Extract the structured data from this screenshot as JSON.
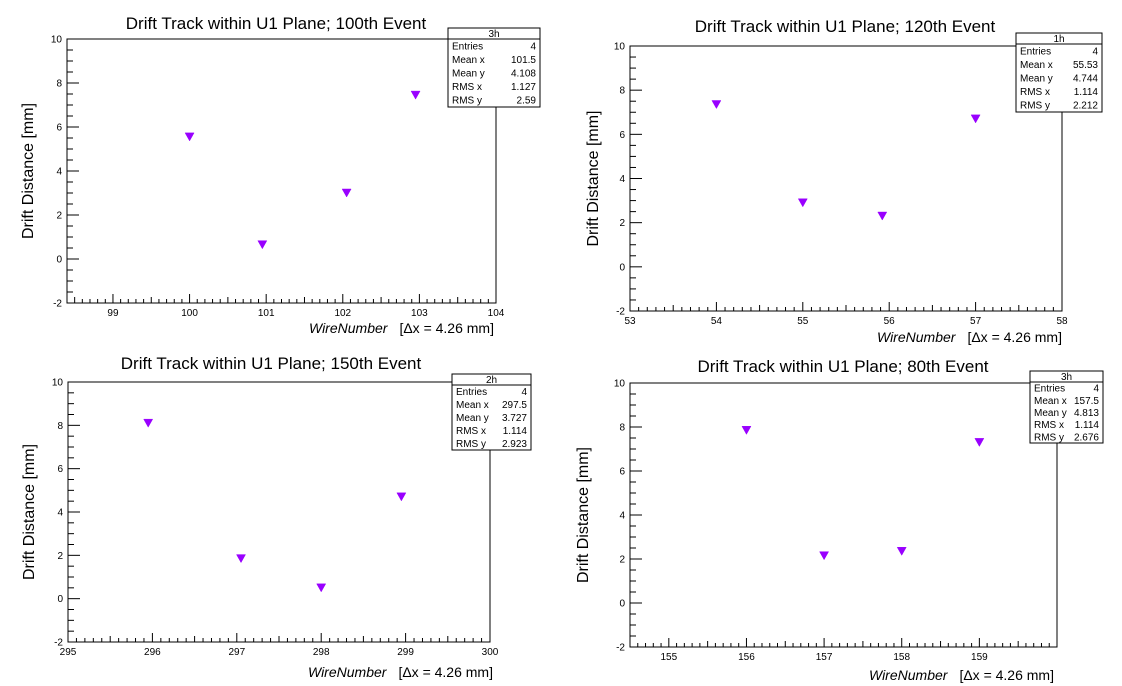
{
  "chart_data": [
    {
      "type": "scatter",
      "title": "Drift Track within U1 Plane; 100th Event",
      "xlabel": "WireNumber",
      "xlabel_extra": "[Δx = 4.26 mm]",
      "ylabel": "Drift Distance [mm]",
      "xlim": [
        98.4,
        104
      ],
      "ylim": [
        -2,
        10
      ],
      "xticks": [
        99,
        100,
        101,
        102,
        103,
        104
      ],
      "yticks": [
        -2,
        0,
        2,
        4,
        6,
        8,
        10
      ],
      "points": [
        {
          "x": 100.0,
          "y": 5.55
        },
        {
          "x": 100.95,
          "y": 0.65
        },
        {
          "x": 102.05,
          "y": 3.0
        },
        {
          "x": 102.95,
          "y": 7.45
        }
      ],
      "marker_color": "#9900ff",
      "stats": {
        "name": "3h",
        "entries": "4",
        "mean_x": "101.5",
        "mean_y": "4.108",
        "rms_x": "1.127",
        "rms_y": "2.59"
      }
    },
    {
      "type": "scatter",
      "title": "Drift Track within U1 Plane; 120th Event",
      "xlabel": "WireNumber",
      "xlabel_extra": "[Δx = 4.26 mm]",
      "ylabel": "Drift Distance  [mm]",
      "xlim": [
        53,
        58
      ],
      "ylim": [
        -2,
        10
      ],
      "xticks": [
        53,
        54,
        55,
        56,
        57,
        58
      ],
      "yticks": [
        -2,
        0,
        2,
        4,
        6,
        8,
        10
      ],
      "points": [
        {
          "x": 54.0,
          "y": 7.35
        },
        {
          "x": 55.0,
          "y": 2.9
        },
        {
          "x": 55.92,
          "y": 2.3
        },
        {
          "x": 57.0,
          "y": 6.7
        }
      ],
      "marker_color": "#9900ff",
      "stats": {
        "name": "1h",
        "entries": "4",
        "mean_x": "55.53",
        "mean_y": "4.744",
        "rms_x": "1.114",
        "rms_y": "2.212"
      }
    },
    {
      "type": "scatter",
      "title": "Drift Track within U1 Plane; 150th Event",
      "xlabel": "WireNumber",
      "xlabel_extra": "[Δx = 4.26 mm]",
      "ylabel": "Drift Distance [mm]",
      "xlim": [
        295,
        300
      ],
      "ylim": [
        -2,
        10
      ],
      "xticks": [
        295,
        296,
        297,
        298,
        299,
        300
      ],
      "yticks": [
        -2,
        0,
        2,
        4,
        6,
        8,
        10
      ],
      "points": [
        {
          "x": 295.95,
          "y": 8.1
        },
        {
          "x": 297.05,
          "y": 1.85
        },
        {
          "x": 298.0,
          "y": 0.5
        },
        {
          "x": 298.95,
          "y": 4.7
        }
      ],
      "marker_color": "#9900ff",
      "stats": {
        "name": "2h",
        "entries": "4",
        "mean_x": "297.5",
        "mean_y": "3.727",
        "rms_x": "1.114",
        "rms_y": "2.923"
      }
    },
    {
      "type": "scatter",
      "title": "Drift Track within U1 Plane; 80th Event",
      "xlabel": "WireNumber",
      "xlabel_extra": "[Δx = 4.26 mm]",
      "ylabel": "Drift Distance [mm]",
      "xlim": [
        154.5,
        160
      ],
      "ylim": [
        -2,
        10
      ],
      "xticks": [
        155,
        156,
        157,
        158,
        159
      ],
      "yticks": [
        -2,
        0,
        2,
        4,
        6,
        8,
        10
      ],
      "points": [
        {
          "x": 156.0,
          "y": 7.85
        },
        {
          "x": 157.0,
          "y": 2.15
        },
        {
          "x": 158.0,
          "y": 2.35
        },
        {
          "x": 159.0,
          "y": 7.3
        }
      ],
      "marker_color": "#9900ff",
      "stats": {
        "name": "3h",
        "entries": "4",
        "mean_x": "157.5",
        "mean_y": "4.813",
        "rms_x": "1.114",
        "rms_y": "2.676"
      }
    }
  ],
  "stats_labels": {
    "entries": "Entries",
    "mean_x": "Mean x",
    "mean_y": "Mean y",
    "rms_x": "RMS x",
    "rms_y": "RMS y"
  }
}
